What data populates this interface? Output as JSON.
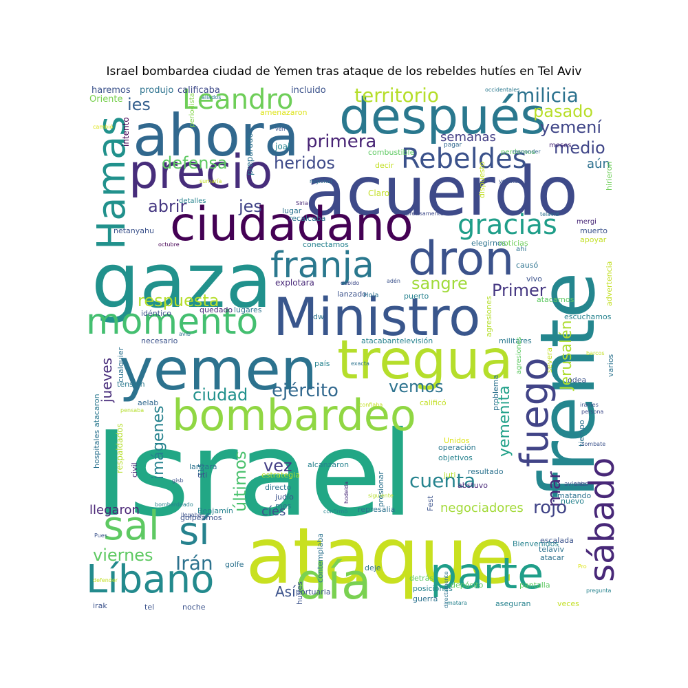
{
  "title": "Israel bombardea ciudad de Yemen tras ataque de los rebeldes hutíes en Tel Aviv",
  "colors": {
    "background": "#ffffff"
  },
  "words": [
    {
      "text": "Israel",
      "color": "#22a785"
    },
    {
      "text": "ataque",
      "color": "#c8e020"
    },
    {
      "text": "gaza",
      "color": "#21918c"
    },
    {
      "text": "ahora",
      "color": "#31688e"
    },
    {
      "text": "después",
      "color": "#2a788e"
    },
    {
      "text": "acuerdo",
      "color": "#3e4a89"
    },
    {
      "text": "precio",
      "color": "#472d7b"
    },
    {
      "text": "Hamas",
      "color": "#21918c"
    },
    {
      "text": "ciudadano",
      "color": "#440154"
    },
    {
      "text": "yemen",
      "color": "#2c728e"
    },
    {
      "text": "tregua",
      "color": "#b5de2b"
    },
    {
      "text": "Ministro",
      "color": "#39568c"
    },
    {
      "text": "frente",
      "color": "#24868e"
    },
    {
      "text": "momento",
      "color": "#44bf70"
    },
    {
      "text": "bombardeo",
      "color": "#90d743"
    },
    {
      "text": "dron",
      "color": "#3b528b"
    },
    {
      "text": "franja",
      "color": "#2a788e"
    },
    {
      "text": "Líbano",
      "color": "#238a8d"
    },
    {
      "text": "día",
      "color": "#7ad151"
    },
    {
      "text": "parte",
      "color": "#1f9e89"
    },
    {
      "text": "sal",
      "color": "#5ec962"
    },
    {
      "text": "sí",
      "color": "#26828e"
    },
    {
      "text": "sábado",
      "color": "#482878"
    },
    {
      "text": "fuego",
      "color": "#414487"
    },
    {
      "text": "Rebeldes",
      "color": "#3b528b"
    },
    {
      "text": "Leandro",
      "color": "#6ece58"
    },
    {
      "text": "gracias",
      "color": "#1f9e89"
    },
    {
      "text": "territorio",
      "color": "#b5de2b"
    },
    {
      "text": "milicia",
      "color": "#2c728e"
    },
    {
      "text": "pasado",
      "color": "#b8de29"
    },
    {
      "text": "yemení",
      "color": "#404688"
    },
    {
      "text": "medio",
      "color": "#404688"
    },
    {
      "text": "ies",
      "color": "#355f8d"
    },
    {
      "text": "primera",
      "color": "#482475"
    },
    {
      "text": "semanas",
      "color": "#433e85"
    },
    {
      "text": "defensa",
      "color": "#5ec962"
    },
    {
      "text": "heridos",
      "color": "#3e4a89"
    },
    {
      "text": "aún",
      "color": "#2d708e"
    },
    {
      "text": "abrir",
      "color": "#453781"
    },
    {
      "text": "jes",
      "color": "#414487"
    },
    {
      "text": "respuesta",
      "color": "#b5de2b"
    },
    {
      "text": "sangre",
      "color": "#a0da39"
    },
    {
      "text": "Primer",
      "color": "#453781"
    },
    {
      "text": "ejército",
      "color": "#31688e"
    },
    {
      "text": "ciudad",
      "color": "#21918c"
    },
    {
      "text": "vemos",
      "color": "#2c728e"
    },
    {
      "text": "jueves",
      "color": "#472c7a"
    },
    {
      "text": "imágenes",
      "color": "#26828e"
    },
    {
      "text": "Jerusalén",
      "color": "#addc30"
    },
    {
      "text": "yemenita",
      "color": "#1fa088"
    },
    {
      "text": "cuenta",
      "color": "#25838e"
    },
    {
      "text": "mar",
      "color": "#482878"
    },
    {
      "text": "rojo",
      "color": "#414487"
    },
    {
      "text": "últimos",
      "color": "#4ac16d"
    },
    {
      "text": "vez",
      "color": "#433e85"
    },
    {
      "text": "Irán",
      "color": "#2c728e"
    },
    {
      "text": "viernes",
      "color": "#5ec962"
    },
    {
      "text": "Así",
      "color": "#3b528b"
    },
    {
      "text": "negociadores",
      "color": "#a2da37"
    },
    {
      "text": "cíes",
      "color": "#3b528b"
    },
    {
      "text": "llegaron",
      "color": "#482475"
    },
    {
      "text": "haremos",
      "color": "#3b528b"
    },
    {
      "text": "produjo",
      "color": "#2c728e"
    },
    {
      "text": "calificaba",
      "color": "#3e4a89"
    },
    {
      "text": "incluido",
      "color": "#3b528b"
    },
    {
      "text": "Oriente",
      "color": "#7ad151"
    },
    {
      "text": "occidentales",
      "color": "#2a788e"
    },
    {
      "text": "aliados",
      "color": "#2a788e"
    },
    {
      "text": "periodista",
      "color": "#84d44b"
    },
    {
      "text": "amenazaron",
      "color": "#dde318"
    },
    {
      "text": "intento",
      "color": "#440154"
    },
    {
      "text": "preparado",
      "color": "#2c728e"
    },
    {
      "text": "cambió",
      "color": "#dde318"
    },
    {
      "text": "ven",
      "color": "#3b528b"
    },
    {
      "text": "perdemos",
      "color": "#5ec962"
    },
    {
      "text": "meses",
      "color": "#482878"
    },
    {
      "text": "joal",
      "color": "#26828e"
    },
    {
      "text": "pagar",
      "color": "#31688e"
    },
    {
      "text": "responder",
      "color": "#31688e"
    },
    {
      "text": "combustible",
      "color": "#5ec962"
    },
    {
      "text": "decir",
      "color": "#c2df23"
    },
    {
      "text": "yemitas",
      "color": "#3b528b"
    },
    {
      "text": "dispuesto",
      "color": "#c2df23"
    },
    {
      "text": "hirieron",
      "color": "#6ece58"
    },
    {
      "text": "regional",
      "color": "#2c728e"
    },
    {
      "text": "sumaría",
      "color": "#c2df23"
    },
    {
      "text": "Claro",
      "color": "#c2df23"
    },
    {
      "text": "detalles",
      "color": "#26828e"
    },
    {
      "text": "Siria",
      "color": "#482878"
    },
    {
      "text": "lugar",
      "color": "#2c728e"
    },
    {
      "text": "precisamente",
      "color": "#3e4a89"
    },
    {
      "text": "telavid",
      "color": "#2c728e"
    },
    {
      "text": "mergi",
      "color": "#482878"
    },
    {
      "text": "recalcaba",
      "color": "#2c728e"
    },
    {
      "text": "netanyahu",
      "color": "#3b528b"
    },
    {
      "text": "octubre",
      "color": "#440154"
    },
    {
      "text": "conectamos",
      "color": "#26828e"
    },
    {
      "text": "elegirnos",
      "color": "#2c728e"
    },
    {
      "text": "noticias",
      "color": "#6ece58"
    },
    {
      "text": "muerto",
      "color": "#3b528b"
    },
    {
      "text": "apoyar",
      "color": "#c2df23"
    },
    {
      "text": "ahí",
      "color": "#2c728e"
    },
    {
      "text": "explotara",
      "color": "#482878"
    },
    {
      "text": "debido",
      "color": "#3e4a89"
    },
    {
      "text": "adén",
      "color": "#3b528b"
    },
    {
      "text": "causó",
      "color": "#2c728e"
    },
    {
      "text": "vivo",
      "color": "#3b528b"
    },
    {
      "text": "lanzado",
      "color": "#3b528b"
    },
    {
      "text": "Hola",
      "color": "#2c728e"
    },
    {
      "text": "puerto",
      "color": "#26828e"
    },
    {
      "text": "atacarnos",
      "color": "#5ec962"
    },
    {
      "text": "idéntico",
      "color": "#3b528b"
    },
    {
      "text": "quedado",
      "color": "#482878"
    },
    {
      "text": "lugares",
      "color": "#2c728e"
    },
    {
      "text": "dw",
      "color": "#2c728e"
    },
    {
      "text": "agresiones",
      "color": "#b5de2b"
    },
    {
      "text": "escuchamos",
      "color": "#26828e"
    },
    {
      "text": "advertencia",
      "color": "#c2df23"
    },
    {
      "text": "avib",
      "color": "#2c728e"
    },
    {
      "text": "necesario",
      "color": "#3b528b"
    },
    {
      "text": "atacabantelevisión",
      "color": "#26828e"
    },
    {
      "text": "militares",
      "color": "#2a788e"
    },
    {
      "text": "agresiones",
      "color": "#5ec962"
    },
    {
      "text": "atacaron",
      "color": "#2a788e"
    },
    {
      "text": "cualquier",
      "color": "#2c728e"
    },
    {
      "text": "país",
      "color": "#26828e"
    },
    {
      "text": "exacta",
      "color": "#2c728e"
    },
    {
      "text": "tensión",
      "color": "#2a788e"
    },
    {
      "text": "severa",
      "color": "#c2df23"
    },
    {
      "text": "barcos",
      "color": "#c2df23"
    },
    {
      "text": "varios",
      "color": "#2c728e"
    },
    {
      "text": "odea",
      "color": "#3b528b"
    },
    {
      "text": "aelab",
      "color": "#31688e"
    },
    {
      "text": "pensaba",
      "color": "#b5de2b"
    },
    {
      "text": "confiaba",
      "color": "#c2df23"
    },
    {
      "text": "calificó",
      "color": "#c2df23"
    },
    {
      "text": "iraníes",
      "color": "#3b528b"
    },
    {
      "text": "persona",
      "color": "#3e4a89"
    },
    {
      "text": "problema",
      "color": "#2c728e"
    },
    {
      "text": "respaldados",
      "color": "#b5de2b"
    },
    {
      "text": "hospitales",
      "color": "#2c728e"
    },
    {
      "text": "siguiente",
      "color": "#b5de2b"
    },
    {
      "text": "Unidos",
      "color": "#dde318"
    },
    {
      "text": "tiempo",
      "color": "#2c728e"
    },
    {
      "text": "f15",
      "color": "#2c728e"
    },
    {
      "text": "lanzara",
      "color": "#2c728e"
    },
    {
      "text": "alcanzaron",
      "color": "#26828e"
    },
    {
      "text": "operación",
      "color": "#2a788e"
    },
    {
      "text": "resultado",
      "color": "#2c728e"
    },
    {
      "text": "objetivos",
      "color": "#26828e"
    },
    {
      "text": "combate",
      "color": "#3b528b"
    },
    {
      "text": "civil",
      "color": "#482878"
    },
    {
      "text": "uti",
      "color": "#3b528b"
    },
    {
      "text": "estrategia",
      "color": "#b5de2b"
    },
    {
      "text": "presionar",
      "color": "#2c728e"
    },
    {
      "text": "juti",
      "color": "#b5de2b"
    },
    {
      "text": "abstuvo",
      "color": "#482878"
    },
    {
      "text": "gisb",
      "color": "#3b528b"
    },
    {
      "text": "directo",
      "color": "#2c728e"
    },
    {
      "text": "hodeida",
      "color": "#482878"
    },
    {
      "text": "aviones",
      "color": "#3b528b"
    },
    {
      "text": "sido",
      "color": "#3b528b"
    },
    {
      "text": "matando",
      "color": "#2c728e"
    },
    {
      "text": "judío",
      "color": "#3b528b"
    },
    {
      "text": "mes",
      "color": "#2c728e"
    },
    {
      "text": "nuevo",
      "color": "#26828e"
    },
    {
      "text": "bombardeado",
      "color": "#26828e"
    },
    {
      "text": "llegaban",
      "color": "#3b528b"
    },
    {
      "text": "Benjamín",
      "color": "#26828e"
    },
    {
      "text": "confirmó",
      "color": "#26828e"
    },
    {
      "text": "represalia",
      "color": "#2c728e"
    },
    {
      "text": "golpeamos",
      "color": "#3b528b"
    },
    {
      "text": "escalada",
      "color": "#3b528b"
    },
    {
      "text": "Fest",
      "color": "#3b528b"
    },
    {
      "text": "contemplaba",
      "color": "#2c728e"
    },
    {
      "text": "hutíes",
      "color": "#3b528b"
    },
    {
      "text": "Bienvenidos",
      "color": "#26828e"
    },
    {
      "text": "telaviv",
      "color": "#2c728e"
    },
    {
      "text": "atacar",
      "color": "#2c728e"
    },
    {
      "text": "Pro",
      "color": "#dde318"
    },
    {
      "text": "golfe",
      "color": "#2c728e"
    },
    {
      "text": "deje",
      "color": "#2c728e"
    },
    {
      "text": "directamente",
      "color": "#2c728e"
    },
    {
      "text": "Pues",
      "color": "#3b528b"
    },
    {
      "text": "defender",
      "color": "#c2df23"
    },
    {
      "text": "detrás",
      "color": "#5ec962"
    },
    {
      "text": "depósito",
      "color": "#5ec962"
    },
    {
      "text": "pantalla",
      "color": "#5ec962"
    },
    {
      "text": "pregunta",
      "color": "#26828e"
    },
    {
      "text": "portuaria",
      "color": "#3b528b"
    },
    {
      "text": "posiciones",
      "color": "#26828e"
    },
    {
      "text": "guerra",
      "color": "#2c728e"
    },
    {
      "text": "matara",
      "color": "#26828e"
    },
    {
      "text": "aseguran",
      "color": "#26828e"
    },
    {
      "text": "veces",
      "color": "#c2df23"
    },
    {
      "text": "irak",
      "color": "#3b528b"
    },
    {
      "text": "tel",
      "color": "#3b528b"
    },
    {
      "text": "noche",
      "color": "#3b528b"
    }
  ]
}
